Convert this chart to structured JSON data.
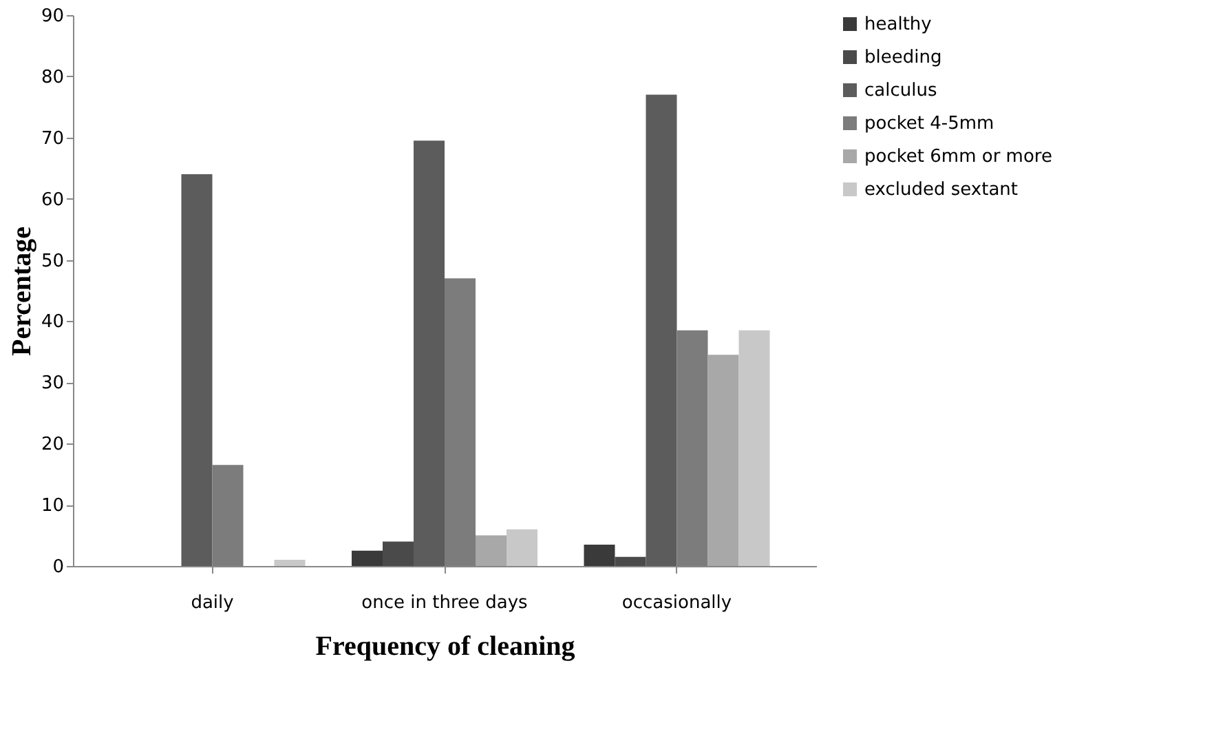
{
  "chart_data": {
    "type": "bar",
    "xlabel": "Frequency of cleaning",
    "ylabel": "Percentage",
    "categories": [
      "daily",
      "once in three days",
      "occasionally"
    ],
    "series": [
      {
        "name": "healthy",
        "color": "#3a3a3a",
        "values": [
          0,
          2.5,
          3.5
        ]
      },
      {
        "name": "bleeding",
        "color": "#4a4a4a",
        "values": [
          0,
          4,
          1.5
        ]
      },
      {
        "name": "calculus",
        "color": "#5c5c5c",
        "values": [
          64,
          69.5,
          77
        ]
      },
      {
        "name": "pocket 4-5mm",
        "color": "#7c7c7c",
        "values": [
          16.5,
          47,
          38.5
        ]
      },
      {
        "name": "pocket 6mm or more",
        "color": "#a8a8a8",
        "values": [
          0,
          5,
          34.5
        ]
      },
      {
        "name": "excluded sextant",
        "color": "#c8c8c8",
        "values": [
          1,
          6,
          38.5
        ]
      }
    ],
    "ylim": [
      0,
      90
    ],
    "yticks": [
      0,
      10,
      20,
      30,
      40,
      50,
      60,
      70,
      80,
      90
    ],
    "grid": false,
    "legend": "right"
  }
}
